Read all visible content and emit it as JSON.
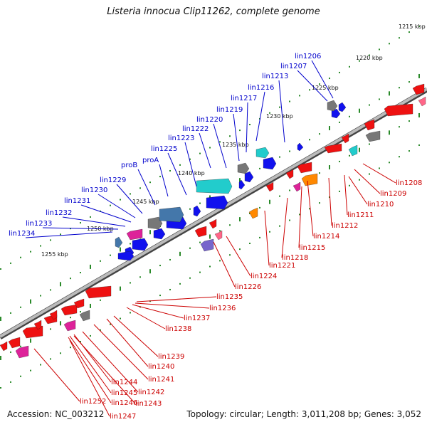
{
  "title": "Listeria innocua Clip11262, complete genome",
  "accession": "Accession: NC_003212",
  "topology": "Topology: circular; Length: 3,011,208 bp; Genes: 3,052",
  "colors": {
    "backbone": "#999999",
    "plus_label": "#0000cc",
    "minus_label": "#cc0000",
    "tick_green": "#2a8a2a",
    "gene_red": "#ee1111",
    "gene_blue": "#1111ee",
    "gene_cyan": "#22cccc",
    "gene_gray": "#777777",
    "gene_magenta": "#dd2299",
    "gene_orange": "#ff8800",
    "gene_steelblue": "#4477aa",
    "gene_purple": "#7766cc",
    "gene_pink": "#ff6688"
  },
  "scale_ticks": [
    "1215 kbp",
    "1220 kbp",
    "1225 kbp",
    "1230 kbp",
    "1235 kbp",
    "1240 kbp",
    "1245 kbp",
    "1250 kbp",
    "1255 kbp"
  ],
  "plus_strand_labels": [
    "lin1206",
    "lin1207",
    "lin1213",
    "lin1216",
    "lin1217",
    "lin1219",
    "lin1220",
    "lin1222",
    "lin1223",
    "lin1225",
    "proA",
    "proB",
    "lin1229",
    "lin1230",
    "lin1231",
    "lin1232",
    "lin1233",
    "lin1234"
  ],
  "minus_strand_labels": [
    "lin1208",
    "lin1209",
    "lin1210",
    "lin1211",
    "lin1212",
    "lin1214",
    "lin1215",
    "lin1218",
    "lin1221",
    "lin1224",
    "lin1226",
    "lin1235",
    "lin1236",
    "lin1237",
    "lin1238",
    "lin1239",
    "lin1240",
    "lin1241",
    "lin1242",
    "lin1243",
    "lin1244",
    "lin1245",
    "lin1246",
    "lin1247",
    "lin1252"
  ]
}
